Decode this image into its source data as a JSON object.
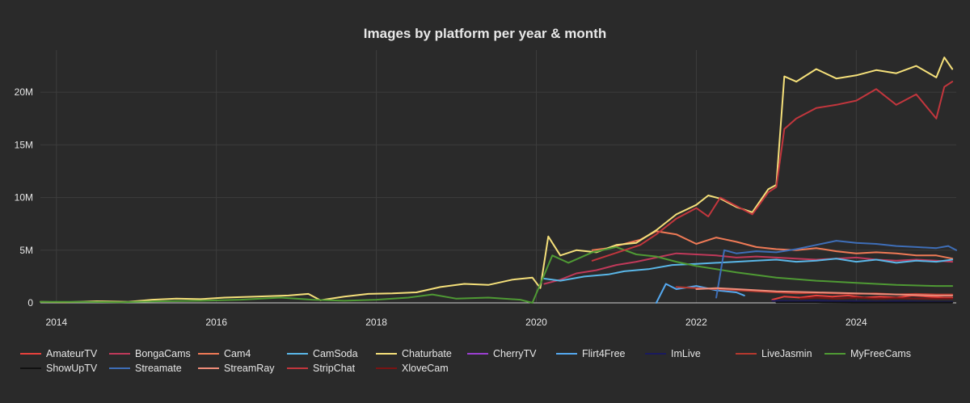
{
  "chart_data": {
    "type": "line",
    "title": "Images by platform per year & month",
    "xlabel": "",
    "ylabel": "",
    "xlim": [
      2013.8,
      2025.25
    ],
    "ylim": [
      0,
      24000000
    ],
    "x_ticks": [
      2014,
      2016,
      2018,
      2020,
      2022,
      2024
    ],
    "y_ticks": [
      0,
      5000000,
      10000000,
      15000000,
      20000000
    ],
    "y_tick_labels": [
      "0",
      "5M",
      "10M",
      "15M",
      "20M"
    ],
    "grid": true,
    "legend_position": "bottom",
    "series": [
      {
        "name": "AmateurTV",
        "color": "#e8413c",
        "x": [
          2022.95,
          2023.1,
          2023.3,
          2023.5,
          2023.7,
          2023.9,
          2024.1,
          2024.3,
          2024.5,
          2024.7,
          2024.9,
          2025.1,
          2025.2
        ],
        "y": [
          300000,
          600000,
          500000,
          700000,
          600000,
          700000,
          500000,
          600000,
          500000,
          700000,
          600000,
          500000,
          500000
        ]
      },
      {
        "name": "BongaCams",
        "color": "#c0395a",
        "x": [
          2020.1,
          2020.3,
          2020.5,
          2020.75,
          2021.0,
          2021.25,
          2021.5,
          2021.75,
          2022.0,
          2022.25,
          2022.5,
          2022.75,
          2023.0,
          2023.25,
          2023.5,
          2023.75,
          2024.0,
          2024.25,
          2024.5,
          2024.75,
          2025.0,
          2025.2
        ],
        "y": [
          1800000,
          2200000,
          2800000,
          3100000,
          3600000,
          3900000,
          4300000,
          4700000,
          4600000,
          4500000,
          4300000,
          4400000,
          4300000,
          4200000,
          4100000,
          4200000,
          4300000,
          4100000,
          4000000,
          4100000,
          4000000,
          3900000
        ]
      },
      {
        "name": "Cam4",
        "color": "#ef7a56",
        "x": [
          2020.7,
          2020.9,
          2021.1,
          2021.3,
          2021.5,
          2021.75,
          2022.0,
          2022.25,
          2022.5,
          2022.75,
          2023.0,
          2023.25,
          2023.5,
          2023.75,
          2024.0,
          2024.25,
          2024.5,
          2024.75,
          2025.0,
          2025.2
        ],
        "y": [
          5000000,
          5200000,
          5600000,
          6000000,
          6800000,
          6500000,
          5600000,
          6200000,
          5800000,
          5300000,
          5100000,
          5000000,
          5200000,
          4900000,
          4700000,
          4800000,
          4700000,
          4500000,
          4500000,
          4200000
        ]
      },
      {
        "name": "CamSoda",
        "color": "#5ab7e8",
        "x": [
          2020.1,
          2020.3,
          2020.6,
          2020.9,
          2021.1,
          2021.4,
          2021.7,
          2022.0,
          2022.25,
          2022.5,
          2022.75,
          2023.0,
          2023.25,
          2023.5,
          2023.75,
          2024.0,
          2024.25,
          2024.5,
          2024.75,
          2025.0,
          2025.2
        ],
        "y": [
          2300000,
          2100000,
          2500000,
          2700000,
          3000000,
          3200000,
          3600000,
          3700000,
          3800000,
          3900000,
          4000000,
          4100000,
          3900000,
          4000000,
          4200000,
          3900000,
          4100000,
          3800000,
          4000000,
          3900000,
          4100000
        ]
      },
      {
        "name": "Chaturbate",
        "color": "#f5e07a",
        "x": [
          2013.8,
          2014.1,
          2014.5,
          2014.9,
          2015.2,
          2015.5,
          2015.8,
          2016.1,
          2016.5,
          2016.9,
          2017.15,
          2017.3,
          2017.6,
          2017.9,
          2018.2,
          2018.5,
          2018.8,
          2019.1,
          2019.4,
          2019.7,
          2019.95,
          2020.05,
          2020.15,
          2020.3,
          2020.5,
          2020.75,
          2021.0,
          2021.25,
          2021.5,
          2021.75,
          2022.0,
          2022.15,
          2022.3,
          2022.5,
          2022.7,
          2022.9,
          2023.0,
          2023.1,
          2023.25,
          2023.5,
          2023.75,
          2024.0,
          2024.25,
          2024.5,
          2024.75,
          2025.0,
          2025.1,
          2025.2
        ],
        "y": [
          100000,
          50000,
          150000,
          100000,
          300000,
          400000,
          350000,
          500000,
          600000,
          700000,
          850000,
          250000,
          600000,
          850000,
          900000,
          1000000,
          1500000,
          1800000,
          1700000,
          2200000,
          2400000,
          1400000,
          6300000,
          4500000,
          5000000,
          4800000,
          5500000,
          5700000,
          6900000,
          8400000,
          9300000,
          10200000,
          9900000,
          9100000,
          8600000,
          10800000,
          11200000,
          21500000,
          21000000,
          22200000,
          21300000,
          21600000,
          22100000,
          21800000,
          22500000,
          21400000,
          23300000,
          22200000
        ]
      },
      {
        "name": "CherryTV",
        "color": "#9b3fd1",
        "x": [
          2023.9,
          2024.2,
          2024.5,
          2024.8,
          2025.2
        ],
        "y": [
          100000,
          100000,
          80000,
          60000,
          60000
        ]
      },
      {
        "name": "Flirt4Free",
        "color": "#55a9f0",
        "x": [
          2021.5,
          2021.62,
          2021.75,
          2022.0,
          2022.25,
          2022.5,
          2022.6
        ],
        "y": [
          0,
          1800000,
          1300000,
          1600000,
          1200000,
          1000000,
          700000
        ]
      },
      {
        "name": "ImLive",
        "color": "#1a1a5e",
        "x": [
          2022.95,
          2023.25,
          2023.5,
          2023.75,
          2024.0,
          2024.25,
          2024.5,
          2024.75,
          2025.0,
          2025.2
        ],
        "y": [
          200000,
          150000,
          200000,
          150000,
          150000,
          120000,
          150000,
          120000,
          100000,
          100000
        ]
      },
      {
        "name": "LiveJasmin",
        "color": "#b6382e",
        "x": [
          2021.75,
          2022.0,
          2022.25,
          2022.5,
          2022.75,
          2023.0,
          2023.25,
          2023.5,
          2023.75,
          2024.0,
          2024.25,
          2024.5,
          2024.75,
          2025.0,
          2025.2
        ],
        "y": [
          1500000,
          1400000,
          1300000,
          1200000,
          1100000,
          1000000,
          900000,
          950000,
          900000,
          850000,
          900000,
          800000,
          850000,
          800000,
          800000
        ]
      },
      {
        "name": "MyFreeCams",
        "color": "#4f9a34",
        "x": [
          2013.8,
          2014.3,
          2014.8,
          2015.3,
          2015.8,
          2016.3,
          2016.8,
          2017.2,
          2017.6,
          2018.0,
          2018.4,
          2018.7,
          2019.0,
          2019.4,
          2019.8,
          2019.95,
          2020.2,
          2020.4,
          2020.7,
          2021.0,
          2021.25,
          2021.5,
          2021.75,
          2022.0,
          2022.5,
          2023.0,
          2023.5,
          2024.0,
          2024.5,
          2025.0,
          2025.2
        ],
        "y": [
          100000,
          100000,
          50000,
          150000,
          200000,
          300000,
          500000,
          300000,
          200000,
          300000,
          500000,
          800000,
          400000,
          500000,
          300000,
          0,
          4500000,
          3800000,
          4800000,
          5300000,
          4600000,
          4400000,
          3900000,
          3500000,
          2900000,
          2400000,
          2100000,
          1900000,
          1700000,
          1600000,
          1600000
        ]
      },
      {
        "name": "ShowUpTV",
        "color": "#111111",
        "x": [
          2023.0,
          2023.5,
          2024.0,
          2024.5,
          2025.2
        ],
        "y": [
          50000,
          50000,
          40000,
          40000,
          40000
        ]
      },
      {
        "name": "Streamate",
        "color": "#3e6eb8",
        "x": [
          2022.25,
          2022.35,
          2022.5,
          2022.75,
          2023.0,
          2023.25,
          2023.5,
          2023.75,
          2024.0,
          2024.25,
          2024.5,
          2024.75,
          2025.0,
          2025.15,
          2025.25
        ],
        "y": [
          500000,
          5000000,
          4700000,
          4900000,
          4800000,
          5100000,
          5500000,
          5900000,
          5700000,
          5600000,
          5400000,
          5300000,
          5200000,
          5400000,
          5000000
        ]
      },
      {
        "name": "StreamRay",
        "color": "#f08d7a",
        "x": [
          2022.0,
          2022.25,
          2022.5,
          2022.75,
          2023.0,
          2023.5,
          2024.0,
          2024.5,
          2025.0,
          2025.2
        ],
        "y": [
          1300000,
          1400000,
          1300000,
          1200000,
          1100000,
          1000000,
          900000,
          800000,
          700000,
          700000
        ]
      },
      {
        "name": "StripChat",
        "color": "#c2363d",
        "x": [
          2020.7,
          2020.9,
          2021.1,
          2021.3,
          2021.5,
          2021.75,
          2022.0,
          2022.15,
          2022.3,
          2022.5,
          2022.7,
          2022.9,
          2023.0,
          2023.1,
          2023.25,
          2023.5,
          2023.75,
          2024.0,
          2024.25,
          2024.5,
          2024.75,
          2025.0,
          2025.1,
          2025.2
        ],
        "y": [
          4000000,
          4500000,
          5000000,
          5500000,
          6500000,
          8000000,
          9000000,
          8200000,
          10000000,
          9200000,
          8400000,
          10500000,
          11000000,
          16500000,
          17500000,
          18500000,
          18800000,
          19200000,
          20300000,
          18800000,
          19800000,
          17500000,
          20500000,
          21000000
        ]
      },
      {
        "name": "XloveCam",
        "color": "#7a1414",
        "x": [
          2023.3,
          2023.5,
          2023.75,
          2024.0,
          2024.25,
          2024.5,
          2024.75,
          2025.0,
          2025.2
        ],
        "y": [
          400000,
          500000,
          400000,
          500000,
          400000,
          450000,
          400000,
          400000,
          400000
        ]
      }
    ]
  }
}
